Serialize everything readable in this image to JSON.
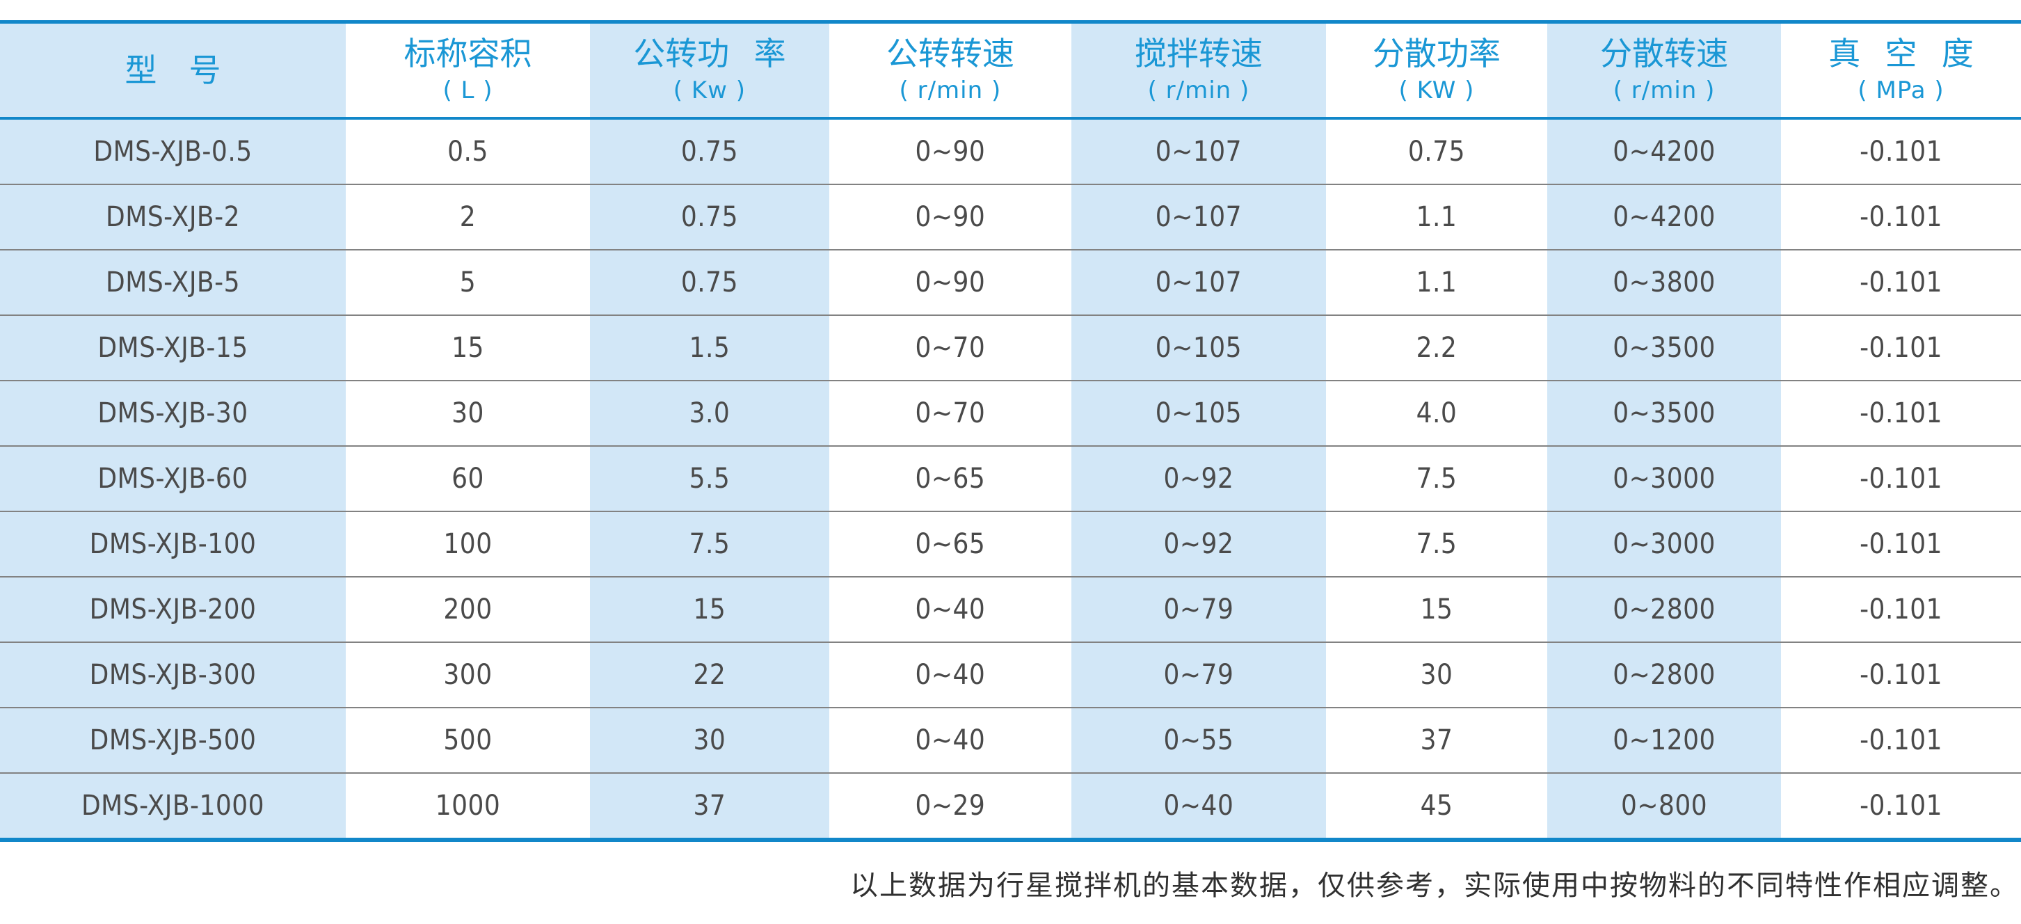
{
  "table": {
    "columns": [
      {
        "title": "型　号",
        "unit": ""
      },
      {
        "title": "标称容积",
        "unit": "( L )"
      },
      {
        "title": "公转功 率",
        "unit": "( Kw )"
      },
      {
        "title": "公转转速",
        "unit": "( r/min )"
      },
      {
        "title": "搅拌转速",
        "unit": "( r/min )"
      },
      {
        "title": "分散功率",
        "unit": "( KW )"
      },
      {
        "title": "分散转速",
        "unit": "( r/min )"
      },
      {
        "title": "真 空 度",
        "unit": "( MPa )"
      }
    ],
    "rows": [
      [
        "DMS-XJB-0.5",
        "0.5",
        "0.75",
        "0~90",
        "0~107",
        "0.75",
        "0~4200",
        "-0.101"
      ],
      [
        "DMS-XJB-2",
        "2",
        "0.75",
        "0~90",
        "0~107",
        "1.1",
        "0~4200",
        "-0.101"
      ],
      [
        "DMS-XJB-5",
        "5",
        "0.75",
        "0~90",
        "0~107",
        "1.1",
        "0~3800",
        "-0.101"
      ],
      [
        "DMS-XJB-15",
        "15",
        "1.5",
        "0~70",
        "0~105",
        "2.2",
        "0~3500",
        "-0.101"
      ],
      [
        "DMS-XJB-30",
        "30",
        "3.0",
        "0~70",
        "0~105",
        "4.0",
        "0~3500",
        "-0.101"
      ],
      [
        "DMS-XJB-60",
        "60",
        "5.5",
        "0~65",
        "0~92",
        "7.5",
        "0~3000",
        "-0.101"
      ],
      [
        "DMS-XJB-100",
        "100",
        "7.5",
        "0~65",
        "0~92",
        "7.5",
        "0~3000",
        "-0.101"
      ],
      [
        "DMS-XJB-200",
        "200",
        "15",
        "0~40",
        "0~79",
        "15",
        "0~2800",
        "-0.101"
      ],
      [
        "DMS-XJB-300",
        "300",
        "22",
        "0~40",
        "0~79",
        "30",
        "0~2800",
        "-0.101"
      ],
      [
        "DMS-XJB-500",
        "500",
        "30",
        "0~40",
        "0~55",
        "37",
        "0~1200",
        "-0.101"
      ],
      [
        "DMS-XJB-1000",
        "1000",
        "37",
        "0~29",
        "0~40",
        "45",
        "0~800",
        "-0.101"
      ]
    ],
    "column_widths_pct": [
      17.11,
      12.08,
      11.84,
      11.98,
      12.6,
      10.95,
      11.57,
      11.87
    ]
  },
  "footer": {
    "note": "以上数据为行星搅拌机的基本数据，仅供参考，实际使用中按物料的不同特性作相应调整。"
  },
  "colors": {
    "accent_blue": "#1187c9",
    "header_text_blue": "#1a97d5",
    "band_light_blue": "#d2e7f7",
    "data_text": "#4a4a4a",
    "row_line": "#828282",
    "footer_text": "#303030"
  }
}
